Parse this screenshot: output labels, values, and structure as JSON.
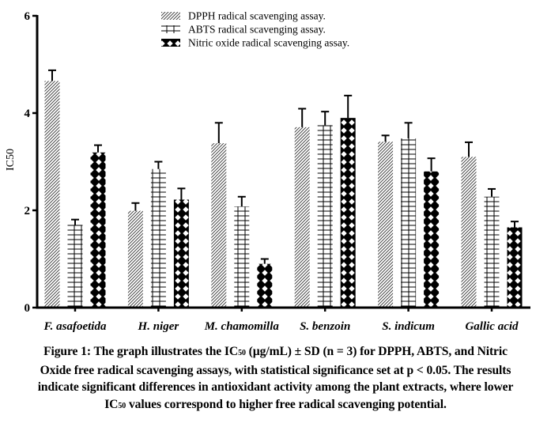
{
  "chart_data": {
    "type": "bar",
    "title": "",
    "xlabel": "",
    "ylabel": "IC50",
    "ylim": [
      0,
      6
    ],
    "yticks": [
      0,
      2,
      4,
      6
    ],
    "grid": false,
    "legend_position": "top-center",
    "categories": [
      "F. asafoetida",
      "H. niger",
      "M. chamomilla",
      "S. benzoin",
      "S. indicum",
      "Gallic acid"
    ],
    "series": [
      {
        "name": "DPPH radical scavenging assay.",
        "pattern": "diagonal-hatch",
        "values": [
          4.66,
          1.99,
          3.38,
          3.71,
          3.41,
          3.1
        ],
        "errors": [
          0.22,
          0.16,
          0.42,
          0.38,
          0.13,
          0.3
        ]
      },
      {
        "name": "ABTS radical scavenging assay.",
        "pattern": "grid-hatch",
        "values": [
          1.7,
          2.85,
          2.08,
          3.75,
          3.48,
          2.28
        ],
        "errors": [
          0.11,
          0.15,
          0.2,
          0.28,
          0.32,
          0.16
        ]
      },
      {
        "name": "Nitric oxide radical scavenging assay.",
        "pattern": "cross-diamond",
        "values": [
          3.19,
          2.22,
          0.9,
          3.9,
          2.8,
          1.65
        ],
        "errors": [
          0.15,
          0.23,
          0.1,
          0.46,
          0.27,
          0.12
        ]
      }
    ]
  },
  "caption": {
    "lines": [
      [
        "Figure 1: The graph illustrates the IC",
        "50",
        " (µg/mL) ± SD (n = 3) for DPPH, ABTS, and Nitric"
      ],
      [
        "Oxide free radical scavenging assays, with statistical significance set at p < 0.05. The results"
      ],
      [
        "indicate significant differences in antioxidant activity among the plant extracts, where lower"
      ],
      [
        "IC",
        "50",
        " values correspond to higher free radical scavenging potential."
      ]
    ]
  }
}
